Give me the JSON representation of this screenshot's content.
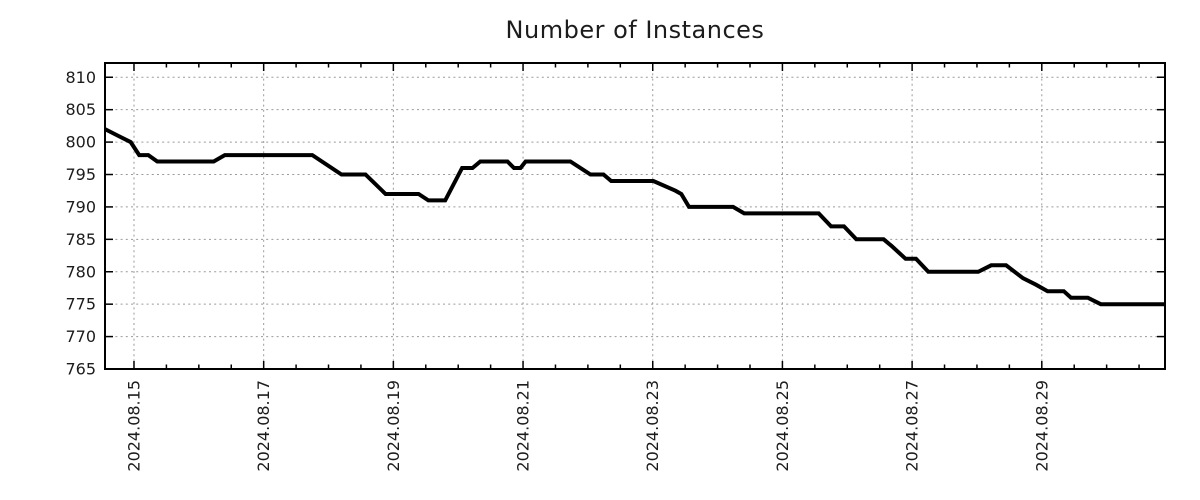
{
  "chart_data": {
    "type": "line",
    "title": "Number of Instances",
    "xlabel": "",
    "ylabel": "",
    "legend": "none",
    "grid": true,
    "x_axis": {
      "unit": "decimal days since 2024-08-14 00:00",
      "range": [
        0.553,
        16.9
      ],
      "major_ticks": [
        1,
        3,
        5,
        7,
        9,
        11,
        13,
        15
      ],
      "major_tick_labels": [
        "2024.08.15",
        "2024.08.17",
        "2024.08.19",
        "2024.08.21",
        "2024.08.23",
        "2024.08.25",
        "2024.08.27",
        "2024.08.29"
      ],
      "minor_tick_interval": 0.5
    },
    "y_axis": {
      "range": [
        765,
        812.2
      ],
      "ticks": [
        765,
        770,
        775,
        780,
        785,
        790,
        795,
        800,
        805,
        810
      ],
      "tick_labels": [
        "765",
        "770",
        "775",
        "780",
        "785",
        "790",
        "795",
        "800",
        "805",
        "810"
      ]
    },
    "series": [
      {
        "name": "instances",
        "color": "#000000",
        "line_width": 4,
        "points": [
          [
            0.553,
            802
          ],
          [
            0.75,
            801
          ],
          [
            0.95,
            800
          ],
          [
            1.08,
            798
          ],
          [
            1.22,
            798
          ],
          [
            1.36,
            797
          ],
          [
            2.23,
            797
          ],
          [
            2.4,
            798
          ],
          [
            3.75,
            798
          ],
          [
            4.2,
            795
          ],
          [
            4.57,
            795
          ],
          [
            4.88,
            792
          ],
          [
            5.39,
            792
          ],
          [
            5.54,
            791
          ],
          [
            5.8,
            791
          ],
          [
            6.06,
            796
          ],
          [
            6.22,
            796
          ],
          [
            6.34,
            797
          ],
          [
            6.76,
            797
          ],
          [
            6.86,
            796
          ],
          [
            6.96,
            796
          ],
          [
            7.04,
            797
          ],
          [
            7.73,
            797
          ],
          [
            8.04,
            795
          ],
          [
            8.24,
            795
          ],
          [
            8.36,
            794
          ],
          [
            9.01,
            794
          ],
          [
            9.35,
            792.5
          ],
          [
            9.44,
            792
          ],
          [
            9.56,
            790
          ],
          [
            10.24,
            790
          ],
          [
            10.41,
            789
          ],
          [
            11.56,
            789
          ],
          [
            11.75,
            787
          ],
          [
            11.95,
            787
          ],
          [
            12.14,
            785
          ],
          [
            12.56,
            785
          ],
          [
            12.68,
            784
          ],
          [
            12.9,
            782
          ],
          [
            13.06,
            782
          ],
          [
            13.25,
            780
          ],
          [
            14.02,
            780
          ],
          [
            14.22,
            781
          ],
          [
            14.45,
            781
          ],
          [
            14.71,
            779
          ],
          [
            14.91,
            778
          ],
          [
            15.09,
            777
          ],
          [
            15.34,
            777
          ],
          [
            15.45,
            776
          ],
          [
            15.71,
            776
          ],
          [
            15.91,
            775
          ],
          [
            16.9,
            775
          ]
        ]
      }
    ],
    "colors": {
      "background": "#ffffff",
      "line": "#000000",
      "grid": "#9a9a9a",
      "spine": "#000000",
      "text": "#1c1c1c"
    }
  }
}
